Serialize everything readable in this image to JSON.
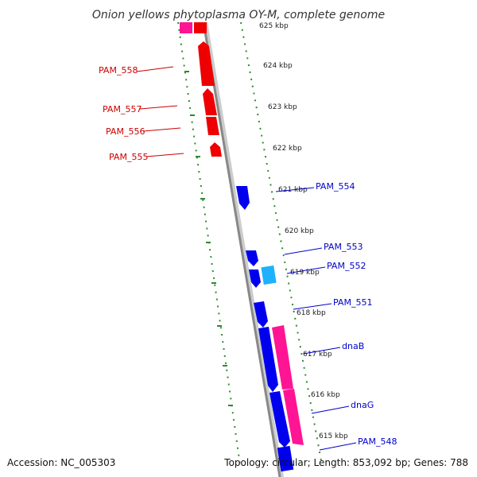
{
  "title": "Onion yellows phytoplasma OY-M, complete genome",
  "footer": {
    "accession": "Accession: NC_005303",
    "summary": "Topology: circular; Length: 853,092 bp; Genes: 788"
  },
  "colors": {
    "forward": "#0000ee",
    "reverse": "#ee0000",
    "rna": "#ff1493",
    "other": "#1fb0ff",
    "dots": "#2e8b2e",
    "backbone": "#888888"
  },
  "kbp_labels": [
    "625 kbp",
    "624 kbp",
    "623 kbp",
    "622 kbp",
    "621 kbp",
    "620 kbp",
    "619 kbp",
    "618 kbp",
    "617 kbp",
    "616 kbp",
    "615 kbp"
  ],
  "genes_left": [
    "PAM_558",
    "PAM_557",
    "PAM_556",
    "PAM_555"
  ],
  "genes_right": [
    "PAM_554",
    "PAM_553",
    "PAM_552",
    "PAM_551",
    "dnaB",
    "dnaG",
    "PAM_548"
  ]
}
